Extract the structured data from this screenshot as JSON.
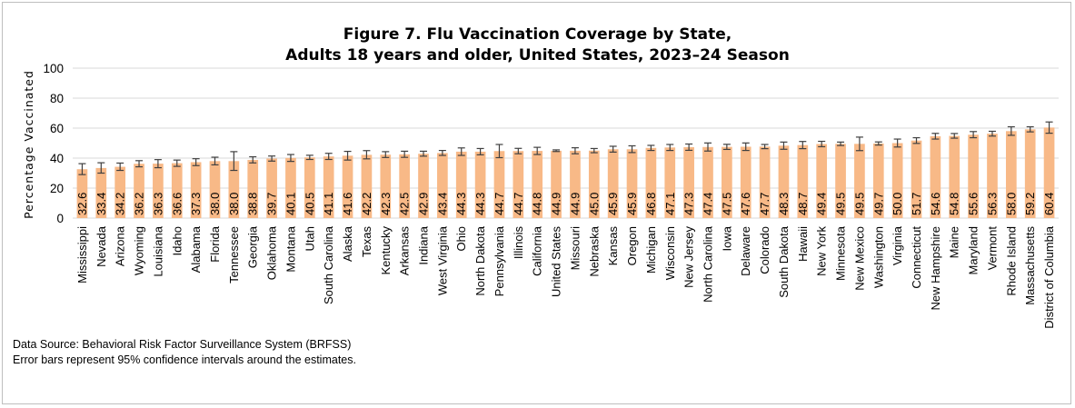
{
  "chart_data": {
    "type": "bar",
    "title": "Figure 7. Flu Vaccination Coverage by State,",
    "subtitle": "Adults 18 years and older, United States, 2023–24 Season",
    "ylabel": "Percentage Vaccinated",
    "xlabel": "",
    "ylim": [
      0,
      100
    ],
    "yticks": [
      "0",
      "20",
      "40",
      "60",
      "80",
      "100"
    ],
    "grid": true,
    "bar_color": "#f8b987",
    "errorbar_color": "#404040",
    "categories": [
      "Mississippi",
      "Nevada",
      "Arizona",
      "Wyoming",
      "Louisiana",
      "Idaho",
      "Alabama",
      "Florida",
      "Tennessee",
      "Georgia",
      "Oklahoma",
      "Montana",
      "Utah",
      "South Carolina",
      "Alaska",
      "Texas",
      "Kentucky",
      "Arkansas",
      "Indiana",
      "West Virginia",
      "Ohio",
      "North Dakota",
      "Pennsylvania",
      "Illinois",
      "California",
      "United States",
      "Missouri",
      "Nebraska",
      "Kansas",
      "Oregon",
      "Michigan",
      "Wisconsin",
      "New Jersey",
      "North Carolina",
      "Iowa",
      "Delaware",
      "Colorado",
      "South Dakota",
      "Hawaii",
      "New York",
      "Minnesota",
      "New Mexico",
      "Washington",
      "Virginia",
      "Connecticut",
      "New Hampshire",
      "Maine",
      "Maryland",
      "Vermont",
      "Rhode Island",
      "Massachusetts",
      "District of Columbia"
    ],
    "values": [
      32.6,
      33.4,
      34.2,
      36.2,
      36.3,
      36.6,
      37.3,
      38.0,
      38.0,
      38.8,
      39.7,
      40.1,
      40.5,
      41.1,
      41.6,
      42.2,
      42.3,
      42.5,
      42.9,
      43.4,
      44.3,
      44.3,
      44.7,
      44.7,
      44.8,
      44.9,
      44.9,
      45.0,
      45.9,
      45.9,
      46.8,
      47.1,
      47.3,
      47.4,
      47.5,
      47.6,
      47.7,
      48.3,
      48.7,
      49.4,
      49.5,
      49.5,
      49.7,
      50.0,
      51.7,
      54.6,
      54.8,
      55.6,
      56.3,
      58.0,
      59.2,
      60.4
    ],
    "value_labels": [
      "32.6",
      "33.4",
      "34.2",
      "36.2",
      "36.3",
      "36.6",
      "37.3",
      "38.0",
      "38.0",
      "38.8",
      "39.7",
      "40.1",
      "40.5",
      "41.1",
      "41.6",
      "42.2",
      "42.3",
      "42.5",
      "42.9",
      "43.4",
      "44.3",
      "44.3",
      "44.7",
      "44.7",
      "44.8",
      "44.9",
      "44.9",
      "45.0",
      "45.9",
      "45.9",
      "46.8",
      "47.1",
      "47.3",
      "47.4",
      "47.5",
      "47.6",
      "47.7",
      "48.3",
      "48.7",
      "49.4",
      "49.5",
      "49.5",
      "49.7",
      "50.0",
      "51.7",
      "54.6",
      "54.8",
      "55.6",
      "56.3",
      "58.0",
      "59.2",
      "60.4"
    ],
    "ci_lower": [
      29.0,
      30.0,
      31.8,
      34.2,
      33.6,
      34.5,
      35.0,
      35.5,
      31.8,
      36.8,
      38.0,
      37.8,
      39.1,
      39.1,
      38.7,
      39.5,
      40.4,
      40.5,
      41.3,
      41.8,
      41.8,
      42.2,
      40.3,
      42.9,
      42.4,
      44.4,
      42.9,
      43.6,
      44.0,
      43.7,
      45.1,
      45.1,
      45.2,
      44.7,
      45.8,
      45.1,
      46.3,
      45.9,
      46.3,
      47.6,
      48.4,
      45.0,
      48.7,
      47.4,
      49.8,
      52.7,
      53.3,
      53.6,
      54.7,
      55.2,
      57.5,
      56.6
    ],
    "ci_upper": [
      36.3,
      36.9,
      36.7,
      38.3,
      39.0,
      38.7,
      39.6,
      40.6,
      44.3,
      40.9,
      41.4,
      42.4,
      41.9,
      43.2,
      44.5,
      45.0,
      44.3,
      44.6,
      44.6,
      45.1,
      46.8,
      46.4,
      49.1,
      46.5,
      47.2,
      45.5,
      46.9,
      46.4,
      47.9,
      48.2,
      48.5,
      49.1,
      49.4,
      50.1,
      49.2,
      50.1,
      49.1,
      50.7,
      51.1,
      51.2,
      50.7,
      54.0,
      50.8,
      52.7,
      53.6,
      56.5,
      56.4,
      57.7,
      57.9,
      60.9,
      60.9,
      64.1
    ]
  },
  "notes": {
    "source": "Data Source: Behavioral Risk Factor Surveillance System (BRFSS)",
    "errorbars": "Error bars represent 95% confidence intervals around the estimates."
  }
}
